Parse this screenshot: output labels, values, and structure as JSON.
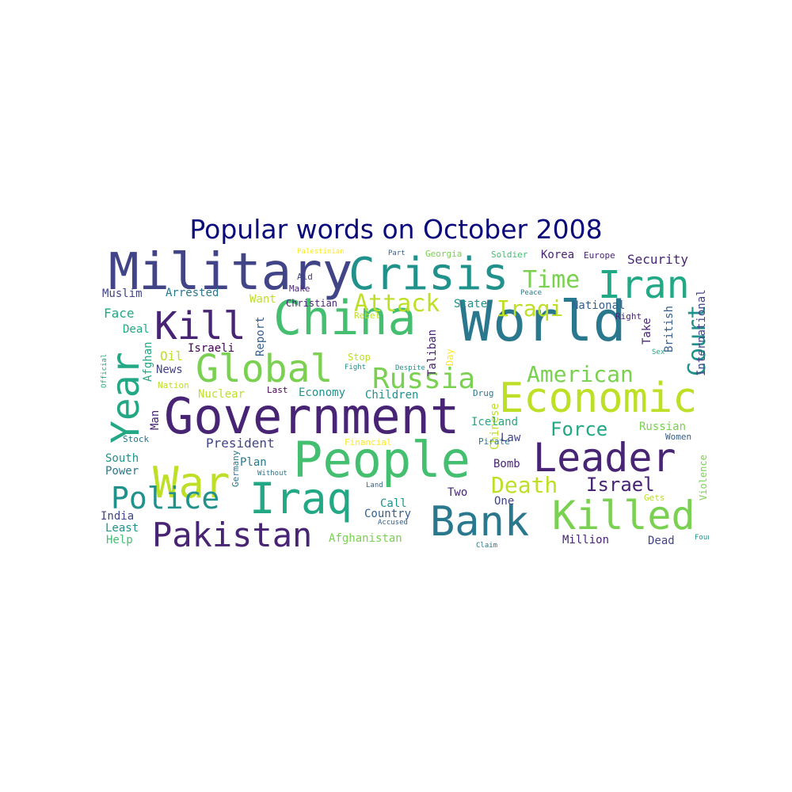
{
  "title": "Popular words on October 2008",
  "colors": {
    "title": "#0a0a7a",
    "background": "#ffffff",
    "viridis": [
      "#440154",
      "#482475",
      "#414487",
      "#355f8d",
      "#2a788e",
      "#21918c",
      "#22a884",
      "#44bf70",
      "#7ad151",
      "#bddf26",
      "#fde725"
    ]
  },
  "words": [
    {
      "text": "Military",
      "color": "#414487"
    },
    {
      "text": "Crisis",
      "color": "#21918c"
    },
    {
      "text": "Iran",
      "color": "#22a884"
    },
    {
      "text": "World",
      "color": "#2a788e"
    },
    {
      "text": "China",
      "color": "#44bf70"
    },
    {
      "text": "Government",
      "color": "#482475"
    },
    {
      "text": "Economic",
      "color": "#bddf26"
    },
    {
      "text": "People",
      "color": "#44bf70"
    },
    {
      "text": "Leader",
      "color": "#482475"
    },
    {
      "text": "Bank",
      "color": "#2a788e"
    },
    {
      "text": "Killed",
      "color": "#7ad151"
    },
    {
      "text": "Iraq",
      "color": "#22a884"
    },
    {
      "text": "War",
      "color": "#bddf26"
    },
    {
      "text": "Global",
      "color": "#7ad151"
    },
    {
      "text": "Kill",
      "color": "#482475"
    },
    {
      "text": "Year",
      "color": "#22a884"
    },
    {
      "text": "Russia",
      "color": "#7ad151"
    },
    {
      "text": "Pakistan",
      "color": "#482475"
    },
    {
      "text": "Police",
      "color": "#21918c"
    },
    {
      "text": "Attack",
      "color": "#bddf26"
    },
    {
      "text": "Time",
      "color": "#7ad151"
    },
    {
      "text": "Iraqi",
      "color": "#bddf26"
    },
    {
      "text": "Court",
      "color": "#21918c"
    },
    {
      "text": "American",
      "color": "#7ad151"
    },
    {
      "text": "Force",
      "color": "#22a884"
    },
    {
      "text": "Death",
      "color": "#bddf26"
    },
    {
      "text": "Israel",
      "color": "#482475"
    },
    {
      "text": "Palestinian",
      "color": "#fde725"
    },
    {
      "text": "Part",
      "color": "#355f8d"
    },
    {
      "text": "Georgia",
      "color": "#7ad151"
    },
    {
      "text": "Soldier",
      "color": "#44bf70"
    },
    {
      "text": "Korea",
      "color": "#482475"
    },
    {
      "text": "Europe",
      "color": "#482475"
    },
    {
      "text": "Security",
      "color": "#482475"
    },
    {
      "text": "Aid",
      "color": "#414487"
    },
    {
      "text": "Peace",
      "color": "#2a788e"
    },
    {
      "text": "Muslim",
      "color": "#414487"
    },
    {
      "text": "Arrested",
      "color": "#2a788e"
    },
    {
      "text": "Make",
      "color": "#482475"
    },
    {
      "text": "Want",
      "color": "#bddf26"
    },
    {
      "text": "Christian",
      "color": "#482475"
    },
    {
      "text": "State",
      "color": "#21918c"
    },
    {
      "text": "National",
      "color": "#355f8d"
    },
    {
      "text": "Right",
      "color": "#482475"
    },
    {
      "text": "Face",
      "color": "#22a884"
    },
    {
      "text": "Rebel",
      "color": "#bddf26"
    },
    {
      "text": "Deal",
      "color": "#22a884"
    },
    {
      "text": "Report",
      "color": "#355f8d"
    },
    {
      "text": "Take",
      "color": "#482475"
    },
    {
      "text": "British",
      "color": "#355f8d"
    },
    {
      "text": "International",
      "color": "#414487"
    },
    {
      "text": "Israeli",
      "color": "#440154"
    },
    {
      "text": "Taliban",
      "color": "#482475"
    },
    {
      "text": "Official",
      "color": "#22a884"
    },
    {
      "text": "Afghan",
      "color": "#22a884"
    },
    {
      "text": "Oil",
      "color": "#bddf26"
    },
    {
      "text": "Stop",
      "color": "#bddf26"
    },
    {
      "text": "Day",
      "color": "#fde725"
    },
    {
      "text": "Sex",
      "color": "#22a884"
    },
    {
      "text": "Fight",
      "color": "#21918c"
    },
    {
      "text": "News",
      "color": "#414487"
    },
    {
      "text": "Nation",
      "color": "#bddf26"
    },
    {
      "text": "Despite",
      "color": "#21918c"
    },
    {
      "text": "Last",
      "color": "#440154"
    },
    {
      "text": "Economy",
      "color": "#21918c"
    },
    {
      "text": "Children",
      "color": "#21918c"
    },
    {
      "text": "Drug",
      "color": "#2a788e"
    },
    {
      "text": "Nuclear",
      "color": "#bddf26"
    },
    {
      "text": "Man",
      "color": "#482475"
    },
    {
      "text": "Chinese",
      "color": "#bddf26"
    },
    {
      "text": "Iceland",
      "color": "#22a884"
    },
    {
      "text": "President",
      "color": "#414487"
    },
    {
      "text": "Stock",
      "color": "#2a788e"
    },
    {
      "text": "Financial",
      "color": "#fde725"
    },
    {
      "text": "Pirate",
      "color": "#2a788e"
    },
    {
      "text": "Law",
      "color": "#414487"
    },
    {
      "text": "Russian",
      "color": "#7ad151"
    },
    {
      "text": "Women",
      "color": "#355f8d"
    },
    {
      "text": "South",
      "color": "#21918c"
    },
    {
      "text": "Power",
      "color": "#2a788e"
    },
    {
      "text": "Plan",
      "color": "#2a788e"
    },
    {
      "text": "Germany",
      "color": "#2a788e"
    },
    {
      "text": "Without",
      "color": "#2a788e"
    },
    {
      "text": "Bomb",
      "color": "#482475"
    },
    {
      "text": "Violence",
      "color": "#7ad151"
    },
    {
      "text": "Land",
      "color": "#355f8d"
    },
    {
      "text": "Two",
      "color": "#482475"
    },
    {
      "text": "One",
      "color": "#414487"
    },
    {
      "text": "Gets",
      "color": "#bddf26"
    },
    {
      "text": "Call",
      "color": "#21918c"
    },
    {
      "text": "Country",
      "color": "#355f8d"
    },
    {
      "text": "India",
      "color": "#414487"
    },
    {
      "text": "Least",
      "color": "#21918c"
    },
    {
      "text": "Help",
      "color": "#44bf70"
    },
    {
      "text": "Accused",
      "color": "#355f8d"
    },
    {
      "text": "Afghanistan",
      "color": "#7ad151"
    },
    {
      "text": "Claim",
      "color": "#2a788e"
    },
    {
      "text": "Million",
      "color": "#482475"
    },
    {
      "text": "Dead",
      "color": "#414487"
    },
    {
      "text": "Found",
      "color": "#21918c"
    }
  ]
}
